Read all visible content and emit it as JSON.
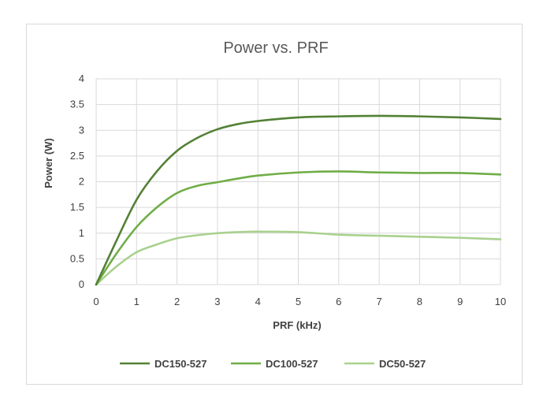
{
  "chart_data": {
    "type": "line",
    "title": "Power vs. PRF",
    "xlabel": "PRF (kHz)",
    "ylabel": "Power (W)",
    "xlim": [
      0,
      10
    ],
    "ylim": [
      0,
      4
    ],
    "x_ticks": [
      "0",
      "1",
      "2",
      "3",
      "4",
      "5",
      "6",
      "7",
      "8",
      "9",
      "10"
    ],
    "y_ticks": [
      "0",
      "0.5",
      "1",
      "1.5",
      "2",
      "2.5",
      "3",
      "3.5",
      "4"
    ],
    "grid": true,
    "legend_position": "bottom",
    "series": [
      {
        "name": "DC150-527",
        "color": "#538135",
        "x": [
          0,
          0.5,
          1,
          1.5,
          2,
          2.5,
          3,
          3.5,
          4,
          5,
          6,
          7,
          8,
          9,
          10
        ],
        "y": [
          0,
          0.85,
          1.65,
          2.2,
          2.6,
          2.85,
          3.02,
          3.12,
          3.18,
          3.25,
          3.27,
          3.28,
          3.27,
          3.25,
          3.22
        ]
      },
      {
        "name": "DC100-527",
        "color": "#70ad47",
        "x": [
          0,
          0.5,
          1,
          1.5,
          2,
          2.5,
          3,
          3.5,
          4,
          5,
          6,
          7,
          8,
          9,
          10
        ],
        "y": [
          0,
          0.6,
          1.12,
          1.5,
          1.78,
          1.92,
          1.99,
          2.06,
          2.12,
          2.18,
          2.2,
          2.18,
          2.17,
          2.17,
          2.14
        ]
      },
      {
        "name": "DC50-527",
        "color": "#a9d18e",
        "x": [
          0,
          0.5,
          1,
          1.5,
          2,
          2.5,
          3,
          3.5,
          4,
          5,
          6,
          7,
          8,
          9,
          10
        ],
        "y": [
          0,
          0.35,
          0.63,
          0.78,
          0.9,
          0.96,
          1.0,
          1.02,
          1.03,
          1.02,
          0.97,
          0.95,
          0.93,
          0.91,
          0.88
        ]
      }
    ]
  }
}
